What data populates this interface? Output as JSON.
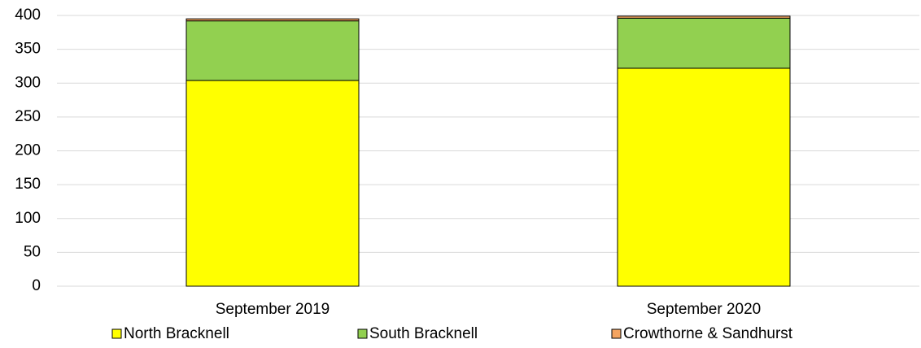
{
  "chart_data": {
    "type": "stacked_bar",
    "categories": [
      "September 2019",
      "September 2020"
    ],
    "series": [
      {
        "name": "North Bracknell",
        "color": "#ffff00",
        "values": [
          304,
          322
        ]
      },
      {
        "name": "South Bracknell",
        "color": "#92d050",
        "values": [
          88,
          74
        ]
      },
      {
        "name": "Crowthorne & Sandhurst",
        "color": "#f4a460",
        "values": [
          3,
          3
        ]
      }
    ],
    "ylim": [
      0,
      400
    ],
    "yticks": [
      0,
      50,
      100,
      150,
      200,
      250,
      300,
      350,
      400
    ],
    "grid": true,
    "legend": "bottom"
  }
}
